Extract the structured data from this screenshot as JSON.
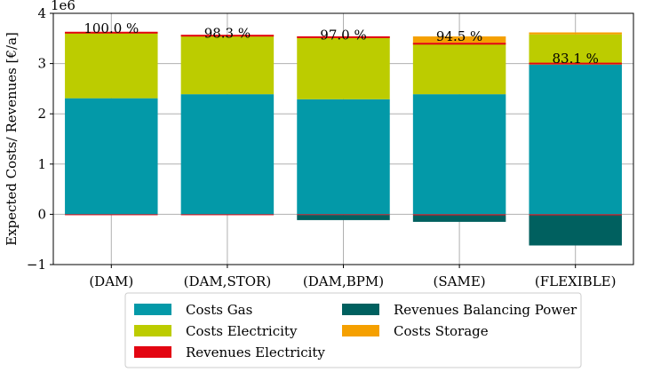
{
  "chart_data": {
    "type": "bar",
    "stacked": true,
    "title": "",
    "xlabel": "",
    "ylabel": "Expected Costs/ Revenues [€/a]",
    "offset_text": "1e6",
    "ylim": [
      -1,
      4
    ],
    "yticks": [
      -1,
      0,
      1,
      2,
      3,
      4
    ],
    "ytick_labels": [
      "−1",
      "0",
      "1",
      "2",
      "3",
      "4"
    ],
    "grid": true,
    "legend_position": "bottom-center",
    "categories": [
      "(DAM)",
      "(DAM,STOR)",
      "(DAM,BPM)",
      "(SAME)",
      "(FLEXIBLE)"
    ],
    "series": [
      {
        "key": "gas",
        "name": "Costs Gas",
        "color": "#0399a8",
        "values": [
          2.31,
          2.39,
          2.29,
          2.39,
          2.98
        ]
      },
      {
        "key": "electricity",
        "name": "Costs Electricity",
        "color": "#bccc00",
        "values": [
          1.32,
          1.15,
          1.25,
          1.02,
          0.6
        ]
      },
      {
        "key": "revenues_electricity",
        "name": "Revenues Electricity",
        "color": "#e30512",
        "values": [
          -0.015,
          -0.015,
          -0.015,
          -0.02,
          -0.02
        ]
      },
      {
        "key": "balancing",
        "name": "Revenues Balancing Power",
        "color": "#00605f",
        "values": [
          0,
          0,
          -0.1,
          -0.13,
          -0.6
        ]
      },
      {
        "key": "storage",
        "name": "Costs Storage",
        "color": "#f5a000",
        "values": [
          0,
          0.03,
          0,
          0.13,
          0.04
        ]
      }
    ],
    "percent_labels": [
      "100.0 %",
      "98.3 %",
      "97.0 %",
      "94.5 %",
      "83.1 %"
    ],
    "percent_label_values": [
      3.7,
      3.6,
      3.57,
      3.54,
      3.1
    ],
    "marker_values": [
      3.615,
      3.555,
      3.525,
      3.395,
      3.0
    ]
  }
}
